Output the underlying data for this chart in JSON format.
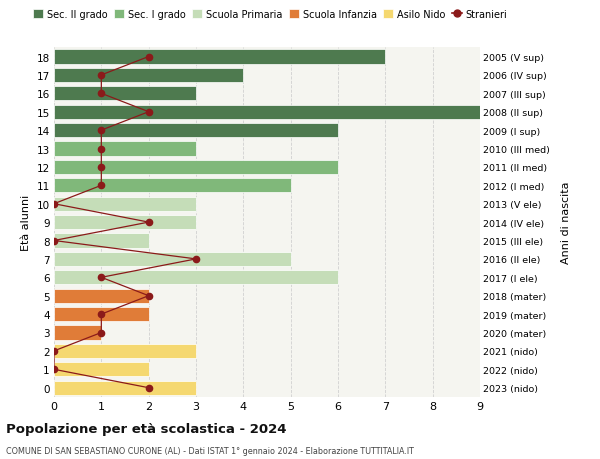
{
  "ages": [
    18,
    17,
    16,
    15,
    14,
    13,
    12,
    11,
    10,
    9,
    8,
    7,
    6,
    5,
    4,
    3,
    2,
    1,
    0
  ],
  "right_labels": [
    "2005 (V sup)",
    "2006 (IV sup)",
    "2007 (III sup)",
    "2008 (II sup)",
    "2009 (I sup)",
    "2010 (III med)",
    "2011 (II med)",
    "2012 (I med)",
    "2013 (V ele)",
    "2014 (IV ele)",
    "2015 (III ele)",
    "2016 (II ele)",
    "2017 (I ele)",
    "2018 (mater)",
    "2019 (mater)",
    "2020 (mater)",
    "2021 (nido)",
    "2022 (nido)",
    "2023 (nido)"
  ],
  "bar_values": [
    7,
    4,
    3,
    9,
    6,
    3,
    6,
    5,
    3,
    3,
    2,
    5,
    6,
    2,
    2,
    1,
    3,
    2,
    3
  ],
  "bar_colors": [
    "#4e7a4f",
    "#4e7a4f",
    "#4e7a4f",
    "#4e7a4f",
    "#4e7a4f",
    "#80b87a",
    "#80b87a",
    "#80b87a",
    "#c5ddb8",
    "#c5ddb8",
    "#c5ddb8",
    "#c5ddb8",
    "#c5ddb8",
    "#e07c38",
    "#e07c38",
    "#e07c38",
    "#f5d870",
    "#f5d870",
    "#f5d870"
  ],
  "stranieri_values": [
    2,
    1,
    1,
    2,
    1,
    1,
    1,
    1,
    0,
    2,
    0,
    3,
    1,
    2,
    1,
    1,
    0,
    0,
    2
  ],
  "stranieri_color": "#8b1a1a",
  "legend_labels": [
    "Sec. II grado",
    "Sec. I grado",
    "Scuola Primaria",
    "Scuola Infanzia",
    "Asilo Nido",
    "Stranieri"
  ],
  "legend_colors": [
    "#4e7a4f",
    "#80b87a",
    "#c5ddb8",
    "#e07c38",
    "#f5d870",
    "#8b1a1a"
  ],
  "ylabel_left": "Età alunni",
  "ylabel_right": "Anni di nascita",
  "title": "Popolazione per età scolastica - 2024",
  "subtitle": "COMUNE DI SAN SEBASTIANO CURONE (AL) - Dati ISTAT 1° gennaio 2024 - Elaborazione TUTTITALIA.IT",
  "xlim": [
    0,
    9
  ],
  "bar_height": 0.78,
  "background_color": "#ffffff",
  "plot_bg_color": "#f5f5f0",
  "grid_color": "#d0d0d0"
}
